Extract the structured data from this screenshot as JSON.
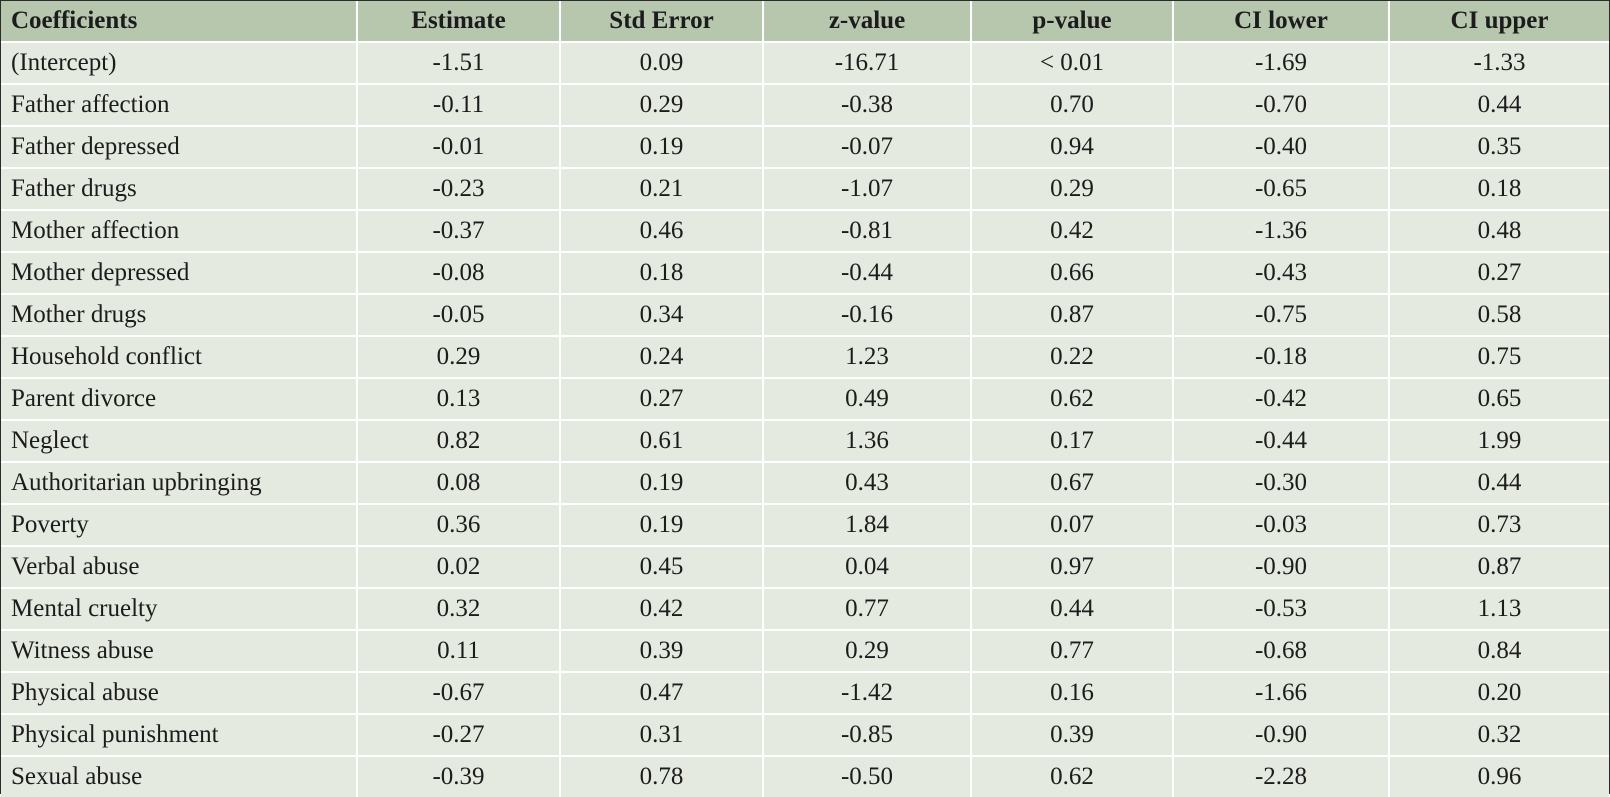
{
  "table": {
    "headers": [
      "Coefficients",
      "Estimate",
      "Std Error",
      "z-value",
      "p-value",
      "CI lower",
      "CI upper"
    ],
    "rows": [
      [
        "(Intercept)",
        "-1.51",
        "0.09",
        "-16.71",
        "< 0.01",
        "-1.69",
        "-1.33"
      ],
      [
        "Father affection",
        "-0.11",
        "0.29",
        "-0.38",
        "0.70",
        "-0.70",
        "0.44"
      ],
      [
        "Father depressed",
        "-0.01",
        "0.19",
        "-0.07",
        "0.94",
        "-0.40",
        "0.35"
      ],
      [
        "Father drugs",
        "-0.23",
        "0.21",
        "-1.07",
        "0.29",
        "-0.65",
        "0.18"
      ],
      [
        "Mother affection",
        "-0.37",
        "0.46",
        "-0.81",
        "0.42",
        "-1.36",
        "0.48"
      ],
      [
        "Mother depressed",
        "-0.08",
        "0.18",
        "-0.44",
        "0.66",
        "-0.43",
        "0.27"
      ],
      [
        "Mother drugs",
        "-0.05",
        "0.34",
        "-0.16",
        "0.87",
        "-0.75",
        "0.58"
      ],
      [
        "Household conflict",
        "0.29",
        "0.24",
        "1.23",
        "0.22",
        "-0.18",
        "0.75"
      ],
      [
        "Parent divorce",
        "0.13",
        "0.27",
        "0.49",
        "0.62",
        "-0.42",
        "0.65"
      ],
      [
        "Neglect",
        "0.82",
        "0.61",
        "1.36",
        "0.17",
        "-0.44",
        "1.99"
      ],
      [
        "Authoritarian upbringing",
        "0.08",
        "0.19",
        "0.43",
        "0.67",
        "-0.30",
        "0.44"
      ],
      [
        "Poverty",
        "0.36",
        "0.19",
        "1.84",
        "0.07",
        "-0.03",
        "0.73"
      ],
      [
        "Verbal abuse",
        "0.02",
        "0.45",
        "0.04",
        "0.97",
        "-0.90",
        "0.87"
      ],
      [
        "Mental cruelty",
        "0.32",
        "0.42",
        "0.77",
        "0.44",
        "-0.53",
        "1.13"
      ],
      [
        "Witness abuse",
        "0.11",
        "0.39",
        "0.29",
        "0.77",
        "-0.68",
        "0.84"
      ],
      [
        "Physical abuse",
        "-0.67",
        "0.47",
        "-1.42",
        "0.16",
        "-1.66",
        "0.20"
      ],
      [
        "Physical punishment",
        "-0.27",
        "0.31",
        "-0.85",
        "0.39",
        "-0.90",
        "0.32"
      ],
      [
        "Sexual abuse",
        "-0.39",
        "0.78",
        "-0.50",
        "0.62",
        "-2.28",
        "0.96"
      ]
    ]
  },
  "colors": {
    "header_bg": "#b7c7ae",
    "body_bg": "#e4eadf",
    "grid": "#ffffff"
  }
}
